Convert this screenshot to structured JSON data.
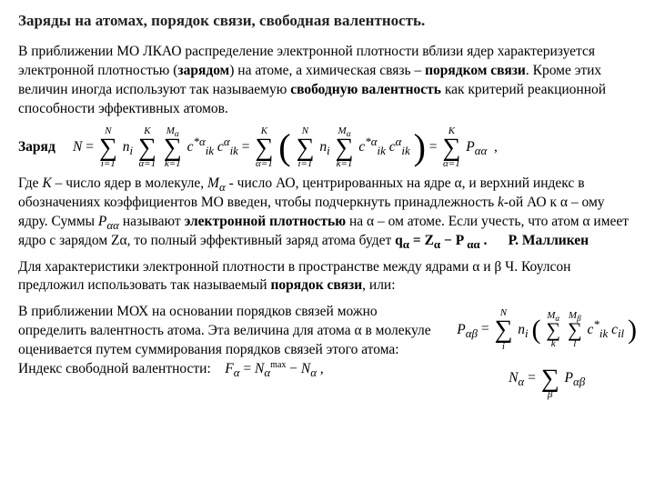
{
  "title": "Заряды на атомах, порядок связи, свободная валентность.",
  "para1_pre": "В приближении МО ЛКАО распределение электронной плотности вблизи ядер характеризуется электронной плотностью (",
  "para1_b1": "зарядом",
  "para1_mid1": ") на атоме, а химическая связь – ",
  "para1_b2": "порядком связи",
  "para1_mid2": ". Кроме этих величин иногда используют так называемую ",
  "para1_b3": "свободную валентность",
  "para1_end": " как критерий реакционной способности эффективных атомов.",
  "charge_label": "Заряд",
  "eq_N": {
    "N": "N",
    "eq": "=",
    "upperN": "N",
    "loweri": "i=1",
    "n_i": "n",
    "n_i_sub": "i",
    "upperK": "K",
    "loweralpha": "α=1",
    "upperMa": "M",
    "upperMa_sub": "α",
    "lowerk": "k=1",
    "c_star": "c",
    "c_star_sup": "*α",
    "c_star_sub": "ik",
    "c": "c",
    "c_sup": "α",
    "c_sub": "ik",
    "upperK2": "K",
    "loweralpha2": "α=1",
    "upperN2": "N",
    "loweri2": "i=1",
    "n_i2": "n",
    "n_i2_sub": "i",
    "upperMa2": "M",
    "upperMa2_sub": "α",
    "lowerk2": "k=1",
    "upperK3": "K",
    "loweralpha3": "α=1",
    "P": "P",
    "P_sub": "αα",
    "comma": ","
  },
  "para2_pre": "Где ",
  "para2_K": "K",
  "para2_mid1": " – число ядер в молекуле, ",
  "para2_Ma_M": "M",
  "para2_Ma_a": "α",
  "para2_mid2": " - число АО, центрированных на ядре α, и верхний индекс в обозначениях коэффициентов МО введен, чтобы подчеркнуть принадлежность ",
  "para2_k": "k",
  "para2_mid3": "-ой АО к α – ому ядру. Суммы ",
  "para2_Paa_P": "P",
  "para2_Paa_aa": "αα",
  "para2_mid4": " называют ",
  "para2_b1": "электронной плотностью",
  "para2_mid5": " на α – ом атоме. Если учесть, что атом α имеет ядро с зарядом Zα, то полный эффективный заряд атома будет ",
  "eq_q": "q",
  "eq_q_sub": "α",
  "eq_q_mid": " = Z",
  "eq_q_sub2": "α",
  "eq_q_mid2": " − P ",
  "eq_q_sub3": "αα",
  "eq_q_end": " .",
  "mulliken": "Р. Малликен",
  "para3_pre": "Для характеристики электронной плотности в пространстве между ядрами α и β Ч. Коулсон предложил использовать так называемый ",
  "para3_b1": "порядок связи",
  "para3_end": ", или:",
  "para4_left": "В приближении МОХ на основании порядков связей можно определить валентность атома. Эта величина для атома α в молекуле оценивается путем суммирования порядков связей этого атома:",
  "para4_left2": "Индекс свободной валентности:",
  "eq_Pab": {
    "P": "P",
    "P_sub": "αβ",
    "eq": "=",
    "upperN": "N",
    "loweri": "i",
    "n_i": "n",
    "n_i_sub": "i",
    "upperMa": "M",
    "upperMa_sub": "α",
    "lowerk": "k",
    "upperMb": "M",
    "upperMb_sub": "β",
    "lowerl": "l",
    "c1": "c",
    "c1_sup": "*",
    "c1_sub": "ik",
    "c2": "c",
    "c2_sub": "il"
  },
  "eq_Na": {
    "N": "N",
    "N_sub": "α",
    "eq": "=",
    "lowerbeta": "β",
    "P": "P",
    "P_sub": "αβ"
  },
  "eq_Fa": {
    "F": "F",
    "F_sub": "α",
    "eq": "=",
    "N1": "N",
    "N1_sub": "α",
    "N1_sup": "max",
    "minus": "−",
    "N2": "N",
    "N2_sub": "α",
    "comma": ","
  },
  "style": {
    "bg": "#ffffff",
    "text_color": "#000000",
    "title_fontsize": 17,
    "body_fontsize": 15.5
  }
}
